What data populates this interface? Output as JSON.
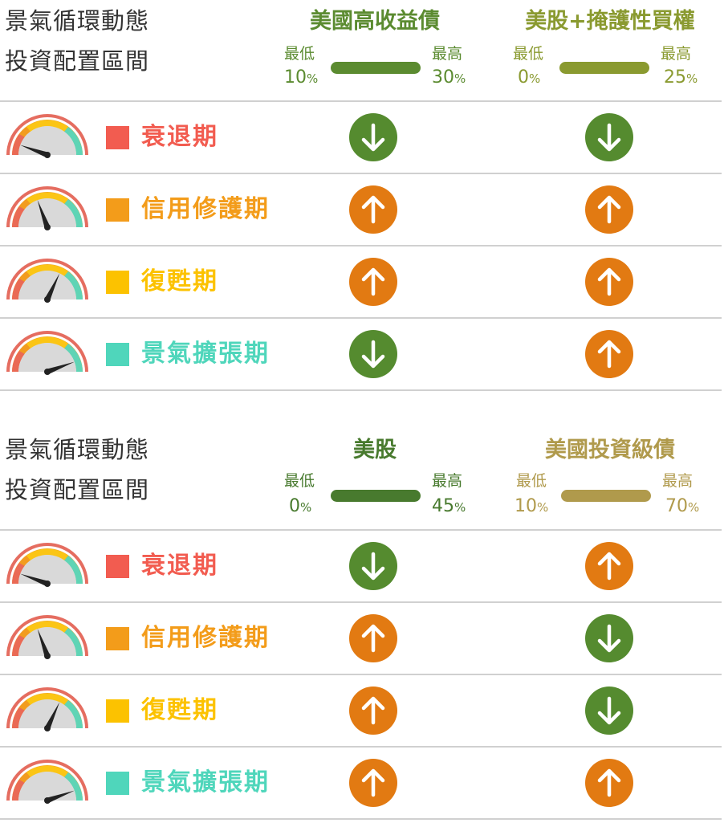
{
  "colors": {
    "green": "#5b8b30",
    "olive": "#8a9a30",
    "dark_green": "#487a2e",
    "tan": "#b09a4c",
    "arrow_up": "#e27a12",
    "arrow_down": "#558b2f"
  },
  "sections": [
    {
      "title_line1": "景氣循環動態",
      "title_line2": "投資配置區間",
      "columns": [
        {
          "title": "美國高收益債",
          "min_label": "最低",
          "max_label": "最高",
          "min_value": "10",
          "max_value": "30",
          "unit": "%",
          "color": "#5b8b30"
        },
        {
          "title": "美股+掩護性買權",
          "min_label": "最低",
          "max_label": "最高",
          "min_value": "0",
          "max_value": "25",
          "unit": "%",
          "color": "#8a9a30"
        }
      ],
      "rows": [
        {
          "phase": "衰退期",
          "color": "#f25c50",
          "arrows": [
            "down-arrow-icon",
            "down-arrow-icon"
          ]
        },
        {
          "phase": "信用修護期",
          "color": "#f39c1a",
          "arrows": [
            "up-arrow-icon",
            "up-arrow-icon"
          ]
        },
        {
          "phase": "復甦期",
          "color": "#fcc200",
          "arrows": [
            "up-arrow-icon",
            "up-arrow-icon"
          ]
        },
        {
          "phase": "景氣擴張期",
          "color": "#4fd6bb",
          "arrows": [
            "down-arrow-icon",
            "up-arrow-icon"
          ]
        }
      ]
    },
    {
      "title_line1": "景氣循環動態",
      "title_line2": "投資配置區間",
      "columns": [
        {
          "title": "美股",
          "min_label": "最低",
          "max_label": "最高",
          "min_value": "0",
          "max_value": "45",
          "unit": "%",
          "color": "#487a2e"
        },
        {
          "title": "美國投資級債",
          "min_label": "最低",
          "max_label": "最高",
          "min_value": "10",
          "max_value": "70",
          "unit": "%",
          "color": "#b09a4c"
        }
      ],
      "rows": [
        {
          "phase": "衰退期",
          "color": "#f25c50",
          "arrows": [
            "down-arrow-icon",
            "up-arrow-icon"
          ]
        },
        {
          "phase": "信用修護期",
          "color": "#f39c1a",
          "arrows": [
            "up-arrow-icon",
            "down-arrow-icon"
          ]
        },
        {
          "phase": "復甦期",
          "color": "#fcc200",
          "arrows": [
            "up-arrow-icon",
            "down-arrow-icon"
          ]
        },
        {
          "phase": "景氣擴張期",
          "color": "#4fd6bb",
          "arrows": [
            "up-arrow-icon",
            "up-arrow-icon"
          ]
        }
      ]
    }
  ]
}
